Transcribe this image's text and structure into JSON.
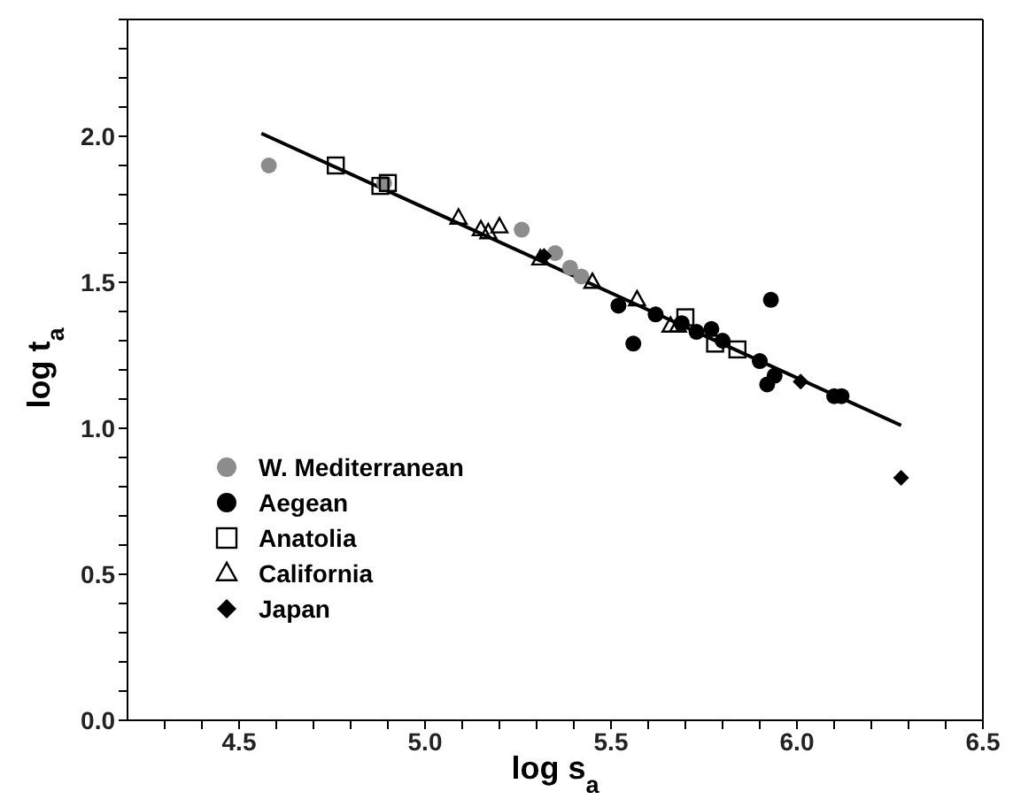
{
  "chart_data": {
    "type": "scatter",
    "xlabel": "log s$_{a}$",
    "ylabel": "log t$_{a}$",
    "xlim": [
      4.2,
      6.5
    ],
    "ylim": [
      0,
      2.4
    ],
    "xticks": [
      {
        "value": 4.3,
        "label": null
      },
      {
        "value": 4.4,
        "label": null
      },
      {
        "value": 4.5,
        "label": "4.5"
      },
      {
        "value": 4.6,
        "label": null
      },
      {
        "value": 4.7,
        "label": null
      },
      {
        "value": 4.8,
        "label": null
      },
      {
        "value": 4.9,
        "label": null
      },
      {
        "value": 5.0,
        "label": "5.0"
      },
      {
        "value": 5.1,
        "label": null
      },
      {
        "value": 5.2,
        "label": null
      },
      {
        "value": 5.3,
        "label": null
      },
      {
        "value": 5.4,
        "label": null
      },
      {
        "value": 5.5,
        "label": "5.5"
      },
      {
        "value": 5.6,
        "label": null
      },
      {
        "value": 5.7,
        "label": null
      },
      {
        "value": 5.8,
        "label": null
      },
      {
        "value": 5.9,
        "label": null
      },
      {
        "value": 6.0,
        "label": "6.0"
      },
      {
        "value": 6.1,
        "label": null
      },
      {
        "value": 6.2,
        "label": null
      },
      {
        "value": 6.3,
        "label": null
      },
      {
        "value": 6.4,
        "label": null
      },
      {
        "value": 6.5,
        "label": "6.5"
      }
    ],
    "yticks": [
      {
        "value": 0,
        "label": "0.0"
      },
      {
        "value": 0.1,
        "label": null
      },
      {
        "value": 0.2,
        "label": null
      },
      {
        "value": 0.3,
        "label": null
      },
      {
        "value": 0.4,
        "label": null
      },
      {
        "value": 0.5,
        "label": "0.5"
      },
      {
        "value": 0.6,
        "label": null
      },
      {
        "value": 0.7,
        "label": null
      },
      {
        "value": 0.8,
        "label": null
      },
      {
        "value": 0.9,
        "label": null
      },
      {
        "value": 1.0,
        "label": "1.0"
      },
      {
        "value": 1.1,
        "label": null
      },
      {
        "value": 1.2,
        "label": null
      },
      {
        "value": 1.3,
        "label": null
      },
      {
        "value": 1.4,
        "label": null
      },
      {
        "value": 1.5,
        "label": "1.5"
      },
      {
        "value": 1.6,
        "label": null
      },
      {
        "value": 1.7,
        "label": null
      },
      {
        "value": 1.8,
        "label": null
      },
      {
        "value": 1.9,
        "label": null
      },
      {
        "value": 2.0,
        "label": "2.0"
      },
      {
        "value": 2.1,
        "label": null
      },
      {
        "value": 2.2,
        "label": null
      },
      {
        "value": 2.3,
        "label": null
      },
      {
        "value": 2.4,
        "label": null
      }
    ],
    "grid": false,
    "legend": "left",
    "series": [
      {
        "type": "line",
        "color": "#000000",
        "marker": "none",
        "line_style": "solid",
        "x": [
          4.56,
          6.28
        ],
        "values": [
          2.01,
          1.01
        ]
      },
      {
        "name": "W. Mediterranean",
        "color": "#8c8c8c",
        "marker": "circle",
        "x": [
          4.58,
          4.89,
          5.26,
          5.35,
          5.39,
          5.42
        ],
        "values": [
          1.9,
          1.84,
          1.68,
          1.6,
          1.55,
          1.52
        ]
      },
      {
        "name": "Aegean",
        "color": "#000000",
        "marker": "circle",
        "x": [
          5.52,
          5.56,
          5.62,
          5.69,
          5.73,
          5.77,
          5.8,
          5.9,
          5.92,
          5.94,
          5.93,
          6.1,
          6.12
        ],
        "values": [
          1.42,
          1.29,
          1.39,
          1.36,
          1.33,
          1.34,
          1.3,
          1.23,
          1.15,
          1.18,
          1.44,
          1.11,
          1.11
        ]
      },
      {
        "name": "Anatolia",
        "color": "#000000",
        "marker": "square",
        "x": [
          4.76,
          4.88,
          4.9,
          5.7,
          5.78,
          5.84
        ],
        "values": [
          1.9,
          1.83,
          1.84,
          1.38,
          1.29,
          1.27
        ]
      },
      {
        "name": "California",
        "color": "#000000",
        "marker": "triangle",
        "x": [
          5.09,
          5.15,
          5.17,
          5.2,
          5.31,
          5.45,
          5.57,
          5.66,
          5.68
        ],
        "values": [
          1.72,
          1.68,
          1.67,
          1.69,
          1.58,
          1.5,
          1.44,
          1.35,
          1.35
        ]
      },
      {
        "name": "Japan",
        "color": "#000000",
        "marker": "diamond",
        "x": [
          5.32,
          6.01,
          6.28
        ],
        "values": [
          1.59,
          1.16,
          0.83
        ]
      }
    ]
  }
}
